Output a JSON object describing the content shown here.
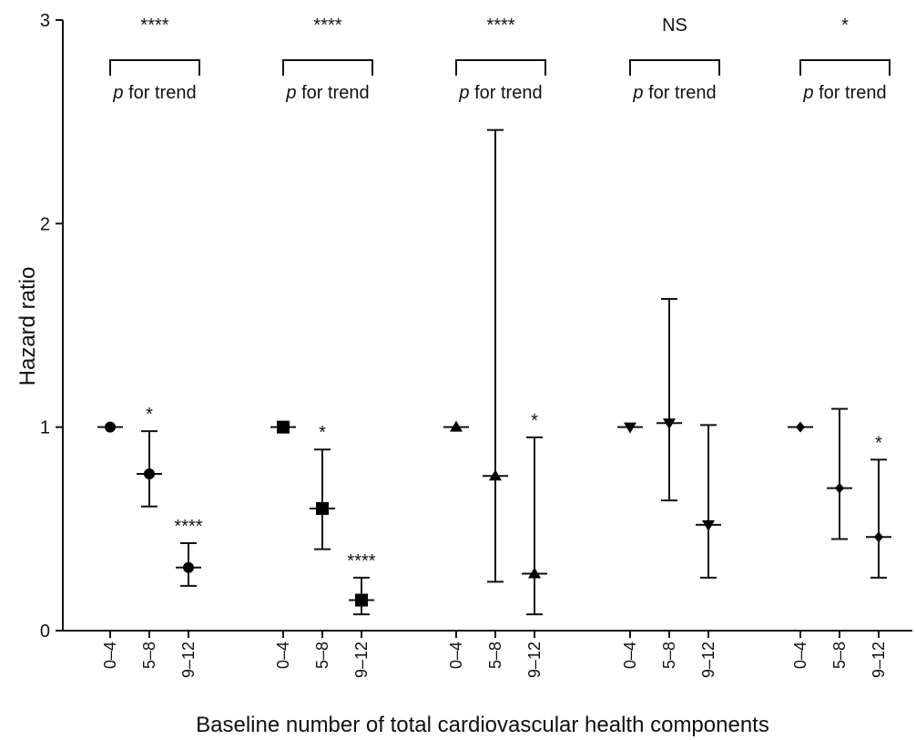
{
  "chart_data": {
    "type": "scatter",
    "xlabel": "Baseline number of total cardiovascular health components",
    "ylabel": "Hazard ratio",
    "ylim": [
      0,
      3
    ],
    "yticks": [
      "0",
      "1",
      "2",
      "3"
    ],
    "categories": [
      "0–4",
      "5–8",
      "9–12"
    ],
    "error_bars": true,
    "reference_line": 1,
    "groups": [
      {
        "marker": "circle",
        "trend_label_italic": "p",
        "trend_label_rest": " for trend",
        "trend_sig": "****",
        "points": [
          {
            "category": "0–4",
            "hr": 1.0,
            "lo": 1.0,
            "hi": 1.0,
            "sig": ""
          },
          {
            "category": "5–8",
            "hr": 0.77,
            "lo": 0.61,
            "hi": 0.98,
            "sig": "*"
          },
          {
            "category": "9–12",
            "hr": 0.31,
            "lo": 0.22,
            "hi": 0.43,
            "sig": "****"
          }
        ]
      },
      {
        "marker": "square",
        "trend_label_italic": "p",
        "trend_label_rest": " for trend",
        "trend_sig": "****",
        "points": [
          {
            "category": "0–4",
            "hr": 1.0,
            "lo": 1.0,
            "hi": 1.0,
            "sig": ""
          },
          {
            "category": "5–8",
            "hr": 0.6,
            "lo": 0.4,
            "hi": 0.89,
            "sig": "*"
          },
          {
            "category": "9–12",
            "hr": 0.15,
            "lo": 0.08,
            "hi": 0.26,
            "sig": "****"
          }
        ]
      },
      {
        "marker": "triangle-up",
        "trend_label_italic": "p",
        "trend_label_rest": " for trend",
        "trend_sig": "****",
        "points": [
          {
            "category": "0–4",
            "hr": 1.0,
            "lo": 1.0,
            "hi": 1.0,
            "sig": ""
          },
          {
            "category": "5–8",
            "hr": 0.76,
            "lo": 0.24,
            "hi": 2.46,
            "sig": ""
          },
          {
            "category": "9–12",
            "hr": 0.28,
            "lo": 0.08,
            "hi": 0.95,
            "sig": "*"
          }
        ]
      },
      {
        "marker": "triangle-down",
        "trend_label_italic": "p",
        "trend_label_rest": " for trend",
        "trend_sig": "NS",
        "points": [
          {
            "category": "0–4",
            "hr": 1.0,
            "lo": 1.0,
            "hi": 1.0,
            "sig": ""
          },
          {
            "category": "5–8",
            "hr": 1.02,
            "lo": 0.64,
            "hi": 1.63,
            "sig": ""
          },
          {
            "category": "9–12",
            "hr": 0.52,
            "lo": 0.26,
            "hi": 1.01,
            "sig": ""
          }
        ]
      },
      {
        "marker": "diamond",
        "trend_label_italic": "p",
        "trend_label_rest": " for trend",
        "trend_sig": "*",
        "points": [
          {
            "category": "0–4",
            "hr": 1.0,
            "lo": 1.0,
            "hi": 1.0,
            "sig": ""
          },
          {
            "category": "5–8",
            "hr": 0.7,
            "lo": 0.45,
            "hi": 1.09,
            "sig": ""
          },
          {
            "category": "9–12",
            "hr": 0.46,
            "lo": 0.26,
            "hi": 0.84,
            "sig": "*"
          }
        ]
      }
    ]
  }
}
